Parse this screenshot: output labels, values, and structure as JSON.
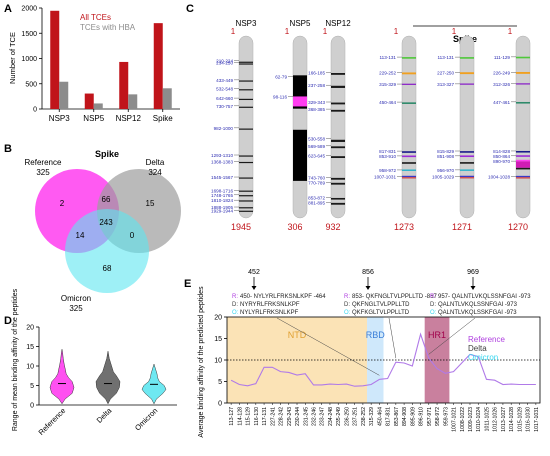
{
  "panels": {
    "A": {
      "letter": "A",
      "ylabel": "Number of TCE",
      "legend": [
        "All TCEs",
        "TCEs with HBA"
      ],
      "colors": [
        "#c0141a",
        "#8c8c8c"
      ],
      "chart_data": {
        "type": "bar",
        "categories": [
          "NSP3",
          "NSP5",
          "NSP12",
          "Spike"
        ],
        "ylim": [
          0,
          2000
        ],
        "yticks": [
          "0",
          "500",
          "1000",
          "1500",
          "2000"
        ],
        "series": [
          {
            "name": "All TCEs",
            "values": [
              1945,
              306,
              932,
              1700
            ]
          },
          {
            "name": "TCEs with HBA",
            "values": [
              540,
              110,
              290,
              410
            ]
          }
        ]
      }
    },
    "B": {
      "letter": "B",
      "title": "Spike",
      "labels": {
        "reference": {
          "name": "Reference",
          "count": "325"
        },
        "delta": {
          "name": "Delta",
          "count": "324"
        },
        "omicron": {
          "name": "Omicron",
          "count": "325"
        }
      },
      "counts": {
        "ref_only": "2",
        "ref_delta": "66",
        "delta_only": "15",
        "all": "243",
        "ref_omicron": "14",
        "delta_omicron": "0",
        "omicron_only": "68"
      },
      "colors": {
        "reference": "#ff3df0",
        "delta": "#9c9c9c",
        "omicron": "#5ee6f0"
      }
    },
    "C": {
      "letter": "C",
      "spike_title": "Spike",
      "ideograms": [
        {
          "name": "NSP3",
          "top": "1",
          "bottom": "1945",
          "max": 1945,
          "labels": [
            "210-224",
            "234-250",
            "433-449",
            "532-548",
            "642-660",
            "730-757",
            "982-1000",
            "1293-1310",
            "1368-1383",
            "1545-1567",
            "1698-1716",
            "1748-1765",
            "1810-1824",
            "1888-1905",
            "1929-1944"
          ],
          "bands": [
            [
              225,
              238,
              "#1a1a1a"
            ],
            [
              245,
              258,
              "#1a1a1a"
            ],
            [
              440,
              452,
              "#1a1a1a"
            ],
            [
              540,
              552,
              "#1a1a1a"
            ],
            [
              650,
              662,
              "#1a1a1a"
            ],
            [
              740,
              752,
              "#1a1a1a"
            ],
            [
              990,
              1002,
              "#1a1a1a"
            ],
            [
              1298,
              1310,
              "#1a1a1a"
            ],
            [
              1372,
              1384,
              "#1a1a1a"
            ],
            [
              1550,
              1562,
              "#1a1a1a"
            ],
            [
              1700,
              1712,
              "#1a1a1a"
            ],
            [
              1752,
              1764,
              "#1a1a1a"
            ],
            [
              1812,
              1824,
              "#1a1a1a"
            ],
            [
              1890,
              1902,
              "#1a1a1a"
            ],
            [
              1930,
              1942,
              "#1a1a1a"
            ]
          ]
        },
        {
          "name": "NSP5",
          "top": "1",
          "bottom": "306",
          "max": 306,
          "labels": [
            "62-79",
            "98-116"
          ],
          "bands": [
            [
              60,
              120,
              "#000000"
            ],
            [
              158,
              250,
              "#000000"
            ],
            [
              98,
              116,
              "#ff3df0"
            ]
          ]
        },
        {
          "name": "NSP12",
          "top": "1",
          "bottom": "932",
          "max": 932,
          "labels": [
            "166-185",
            "237-258",
            "329-343",
            "368-385",
            "530-558",
            "569-589",
            "623-645",
            "743-760",
            "770-789",
            "853-872",
            "881-895"
          ],
          "bands": [
            [
              170,
              180,
              "#1a1a1a"
            ],
            [
              240,
              252,
              "#1a1a1a"
            ],
            [
              332,
              342,
              "#1a1a1a"
            ],
            [
              372,
              382,
              "#1a1a1a"
            ],
            [
              536,
              548,
              "#1a1a1a"
            ],
            [
              572,
              582,
              "#1a1a1a"
            ],
            [
              626,
              636,
              "#1a1a1a"
            ],
            [
              745,
              755,
              "#1a1a1a"
            ],
            [
              772,
              782,
              "#1a1a1a"
            ],
            [
              855,
              864,
              "#1a1a1a"
            ],
            [
              882,
              892,
              "#1a1a1a"
            ]
          ]
        }
      ],
      "spike_variants": [
        {
          "name": "R",
          "top": "1",
          "bottom": "1273",
          "max": 1273,
          "labels": [
            "113-131",
            "229-252",
            "315-329",
            "450-464",
            "817-831",
            "853-910",
            "958-972",
            "1007-1031"
          ],
          "bands": [
            [
              113,
              125,
              "#4fc83a"
            ],
            [
              228,
              242,
              "#f0a020"
            ],
            [
              312,
              322,
              "#8e2cc8"
            ],
            [
              452,
              464,
              "#2e8a6a"
            ],
            [
              818,
              830,
              "#1a1a8a"
            ],
            [
              850,
              862,
              "#9c2cd8"
            ],
            [
              900,
              912,
              "#1a1a1a"
            ],
            [
              955,
              965,
              "#1ab0c8"
            ],
            [
              1002,
              1012,
              "#3a3ac8"
            ],
            [
              1012,
              1022,
              "#d04848"
            ]
          ]
        },
        {
          "name": "D",
          "top": "1",
          "bottom": "1271",
          "max": 1271,
          "labels": [
            "113-131",
            "227-250",
            "313-327",
            "815-829",
            "851-908",
            "956-970",
            "1005-1029"
          ],
          "bands": [
            [
              113,
              125,
              "#4fc83a"
            ],
            [
              226,
              240,
              "#f0a020"
            ],
            [
              310,
              320,
              "#8e2cc8"
            ],
            [
              816,
              828,
              "#1a1a8a"
            ],
            [
              848,
              860,
              "#9c2cd8"
            ],
            [
              898,
              910,
              "#1a1a1a"
            ],
            [
              953,
              963,
              "#1ab0c8"
            ],
            [
              1000,
              1010,
              "#3a3ac8"
            ],
            [
              1010,
              1020,
              "#d04848"
            ]
          ]
        },
        {
          "name": "O",
          "top": "1",
          "bottom": "1270",
          "max": 1270,
          "labels": [
            "111-129",
            "226-249",
            "312-326",
            "447-461",
            "814-828",
            "850-864",
            "890-970",
            "1004-1028"
          ],
          "bands": [
            [
              110,
              122,
              "#4fc83a"
            ],
            [
              224,
              238,
              "#f0a020"
            ],
            [
              308,
              318,
              "#8e2cc8"
            ],
            [
              448,
              460,
              "#2e8a6a"
            ],
            [
              814,
              826,
              "#1a1a8a"
            ],
            [
              846,
              858,
              "#9c2cd8"
            ],
            [
              880,
              892,
              "#ff3df0"
            ],
            [
              892,
              940,
              "#d01cb4"
            ],
            [
              940,
              952,
              "#1a1a1a"
            ],
            [
              1000,
              1010,
              "#3a3ac8"
            ],
            [
              1010,
              1020,
              "#d04848"
            ]
          ]
        }
      ]
    },
    "D": {
      "letter": "D",
      "ylabel": "Range of mean binding affinity of the peptides",
      "chart_data": {
        "type": "violin",
        "categories": [
          "Reference",
          "Delta",
          "Omicron"
        ],
        "ylim": [
          0,
          20
        ],
        "yticks": [
          "0",
          "5",
          "10",
          "15",
          "20"
        ],
        "colors": [
          "#ff3df0",
          "#606060",
          "#5ee6f0"
        ],
        "medians": [
          5.5,
          5.5,
          5.3
        ],
        "profiles": [
          [
            [
              0.3,
              0.0
            ],
            [
              1.5,
              0.25
            ],
            [
              3,
              0.85
            ],
            [
              4.5,
              1.0
            ],
            [
              6,
              0.85
            ],
            [
              7,
              0.55
            ],
            [
              8,
              0.35
            ],
            [
              9.5,
              0.25
            ],
            [
              10.5,
              0.18
            ],
            [
              12,
              0.1
            ],
            [
              13.5,
              0.05
            ],
            [
              14.3,
              0.0
            ]
          ],
          [
            [
              0.3,
              0.0
            ],
            [
              1.5,
              0.2
            ],
            [
              3,
              0.7
            ],
            [
              4.5,
              0.95
            ],
            [
              6,
              1.0
            ],
            [
              7.5,
              0.7
            ],
            [
              8.5,
              0.45
            ],
            [
              10,
              0.3
            ],
            [
              11,
              0.2
            ],
            [
              12,
              0.1
            ],
            [
              13,
              0.05
            ],
            [
              13.8,
              0.0
            ]
          ],
          [
            [
              0.3,
              0.0
            ],
            [
              1.5,
              0.2
            ],
            [
              3,
              0.75
            ],
            [
              4,
              1.0
            ],
            [
              5,
              0.85
            ],
            [
              6,
              0.45
            ],
            [
              7,
              0.3
            ],
            [
              8,
              0.25
            ],
            [
              9,
              0.15
            ],
            [
              10,
              0.05
            ],
            [
              10.5,
              0.0
            ]
          ]
        ]
      }
    },
    "E": {
      "letter": "E",
      "ylabel": "Average binding affinity of the predicted peptides",
      "regions": [
        {
          "name": "NTD",
          "from": "113-127",
          "to": "238-252",
          "color": "#fbe3b6",
          "text_color": "#e0a030"
        },
        {
          "name": "RBD",
          "from": "315-329",
          "to": "450-464",
          "color": "#cfe8fb",
          "text_color": "#3a7ed8"
        },
        {
          "name": "HR1",
          "from": "957-971",
          "to": "959-973",
          "color": "#c9809e",
          "text_color": "#a0004a"
        }
      ],
      "legend": [
        {
          "name": "Reference",
          "color": "#b040e0"
        },
        {
          "name": "Delta",
          "color": "#404040"
        },
        {
          "name": "Omicron",
          "color": "#3ad8f0"
        }
      ],
      "threshold": 10,
      "chart_data": {
        "type": "line",
        "ylim": [
          0,
          20
        ],
        "yticks": [
          "0",
          "5",
          "10",
          "15",
          "20"
        ],
        "x": [
          "113-127",
          "114-128",
          "115-129",
          "116-130",
          "117-131",
          "227-241",
          "228-242",
          "229-243",
          "230-244",
          "231-245",
          "232-246",
          "233-247",
          "234-248",
          "235-249",
          "236-250",
          "237-251",
          "238-252",
          "315-329",
          "450-464",
          "817-831",
          "853-867",
          "894-908",
          "895-909",
          "896-910",
          "957-971",
          "958-972",
          "959-973",
          "1007-1021",
          "1008-1022",
          "1009-1023",
          "1010-1024",
          "1011-1025",
          "1012-1026",
          "1013-1027",
          "1014-1028",
          "1015-1029",
          "1016-1030",
          "1017-1031"
        ],
        "series": [
          {
            "name": "Reference",
            "values": [
              5.3,
              4.3,
              4.0,
              4.5,
              8.3,
              8.3,
              7.3,
              7.1,
              6.5,
              6.8,
              4.2,
              4.2,
              4.4,
              4.3,
              4.4,
              3.9,
              4.0,
              4.3,
              5.5,
              5.7,
              9.5,
              9.3,
              8.6,
              16.0,
              10.4,
              8.0,
              6.9,
              7.3,
              9.3,
              11.3,
              10.8,
              5.5,
              5.3,
              4.3,
              4.4,
              4.3,
              4.3,
              4.3
            ]
          }
        ]
      },
      "callouts": [
        {
          "position": "452",
          "lines": [
            {
              "tag": "R:",
              "text": "450- NYLYRLFRKSNLKPF -464"
            },
            {
              "tag": "D:",
              "text": "NYRYRLFRKSNLKPF"
            },
            {
              "tag": "O:",
              "text": "NYLYRLFRKSNLKPF"
            }
          ]
        },
        {
          "position": "856",
          "lines": [
            {
              "tag": "R:",
              "text": "853- QKFNGLTVLPPLLTD -867"
            },
            {
              "tag": "D:",
              "text": "QKFNGLTVLPPLLTD"
            },
            {
              "tag": "O:",
              "text": "QKFKGLTVLPPLLTD"
            }
          ]
        },
        {
          "position": "969",
          "lines": [
            {
              "tag": "R:",
              "text": "957- QALNTLVKQLSSNFGAI -973"
            },
            {
              "tag": "D:",
              "text": "QALNTLVKQLSSNFGAI -973"
            },
            {
              "tag": "O:",
              "text": "QALNTLVKQLSSKFGAI -973"
            }
          ]
        }
      ]
    }
  }
}
